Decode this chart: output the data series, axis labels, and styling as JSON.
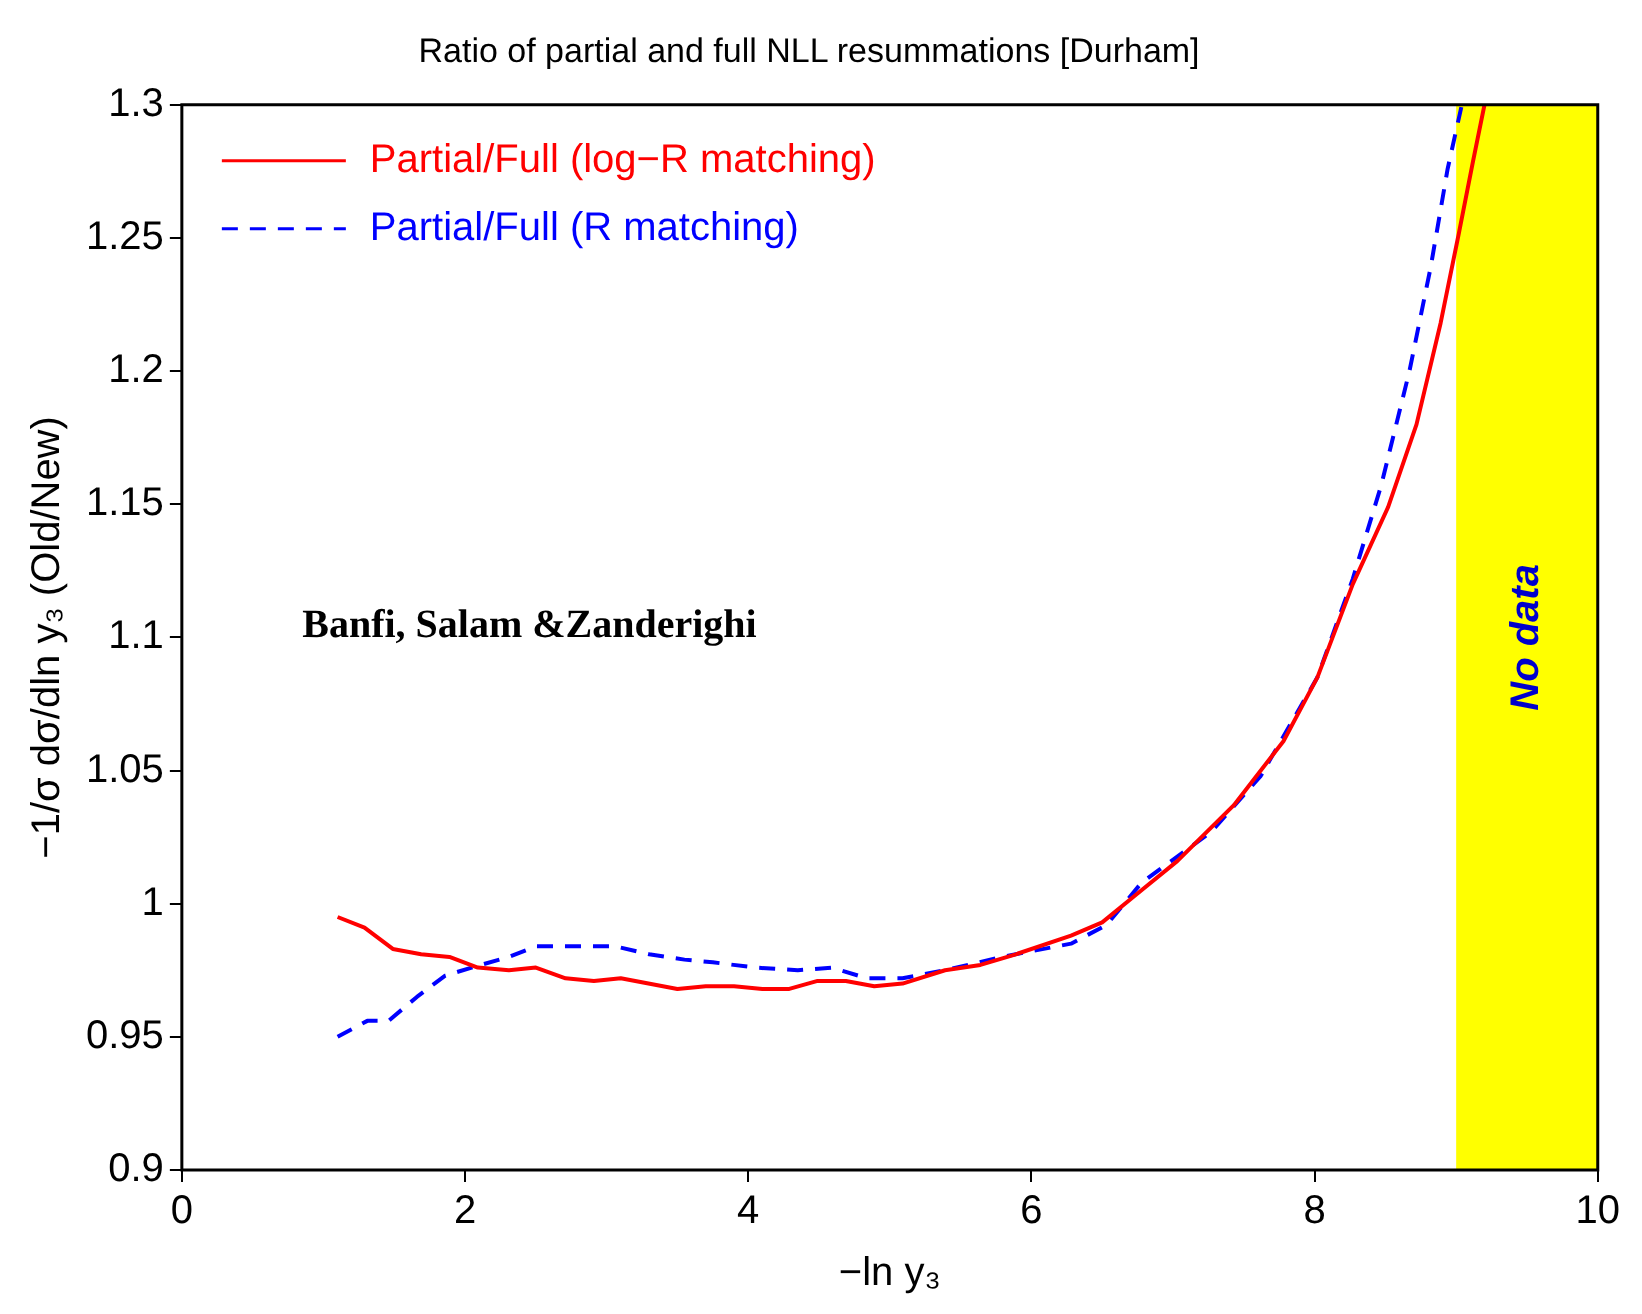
{
  "chart_data": {
    "type": "line",
    "title": "Ratio of partial and full NLL resummations [Durham]",
    "xlabel": "−ln y₃",
    "ylabel": "−1/σ dσ/dln y₃ (Old/New)",
    "xlim": [
      0,
      10
    ],
    "xticks": [
      0,
      2,
      4,
      6,
      8,
      10
    ],
    "ylim": [
      0.9,
      1.3
    ],
    "yticks": [
      0.9,
      0.95,
      1,
      1.05,
      1.1,
      1.15,
      1.2,
      1.25,
      1.3
    ],
    "grid": false,
    "legend": "top left",
    "marker": "none",
    "series": [
      {
        "name": "Partial/Full (log−R matching)",
        "color": "#ff0000",
        "line_style": "solid",
        "x": [
          1.1,
          1.29,
          1.49,
          1.69,
          1.89,
          2.09,
          2.31,
          2.5,
          2.71,
          2.91,
          3.1,
          3.5,
          3.7,
          3.9,
          4.1,
          4.29,
          4.49,
          4.69,
          4.89,
          5.09,
          5.39,
          5.64,
          5.89,
          6.28,
          6.5,
          6.73,
          7.03,
          7.43,
          7.78,
          8.02,
          8.27,
          8.52,
          8.72,
          8.89,
          9.02,
          9.12,
          9.2
        ],
        "values": [
          0.995,
          0.991,
          0.983,
          0.981,
          0.98,
          0.976,
          0.975,
          0.976,
          0.972,
          0.971,
          0.972,
          0.968,
          0.969,
          0.969,
          0.968,
          0.968,
          0.971,
          0.971,
          0.969,
          0.97,
          0.975,
          0.977,
          0.981,
          0.988,
          0.993,
          1.003,
          1.016,
          1.037,
          1.061,
          1.085,
          1.12,
          1.149,
          1.18,
          1.218,
          1.252,
          1.279,
          1.3
        ]
      },
      {
        "name": "Partial/Full (R matching)",
        "color": "#0000ff",
        "line_style": "dashed",
        "x": [
          1.1,
          1.31,
          1.46,
          1.66,
          1.86,
          2.11,
          2.31,
          2.5,
          2.8,
          3.06,
          3.3,
          3.55,
          3.75,
          4.05,
          4.35,
          4.59,
          4.84,
          5.09,
          5.39,
          5.79,
          6.28,
          6.53,
          6.78,
          7.27,
          7.62,
          8.02,
          8.27,
          8.47,
          8.67,
          8.82,
          8.94,
          9.04
        ],
        "values": [
          0.95,
          0.956,
          0.956,
          0.965,
          0.973,
          0.977,
          0.98,
          0.984,
          0.984,
          0.984,
          0.981,
          0.979,
          0.978,
          0.976,
          0.975,
          0.976,
          0.972,
          0.972,
          0.975,
          0.98,
          0.985,
          0.992,
          1.008,
          1.027,
          1.048,
          1.085,
          1.122,
          1.157,
          1.2,
          1.239,
          1.276,
          1.3
        ]
      }
    ],
    "bands": [
      {
        "axis": "x",
        "from": 9,
        "to": 10,
        "label": "No data",
        "color": "#ffff00"
      }
    ],
    "annotations": [
      "Banfi, Salam &Zanderighi"
    ]
  }
}
